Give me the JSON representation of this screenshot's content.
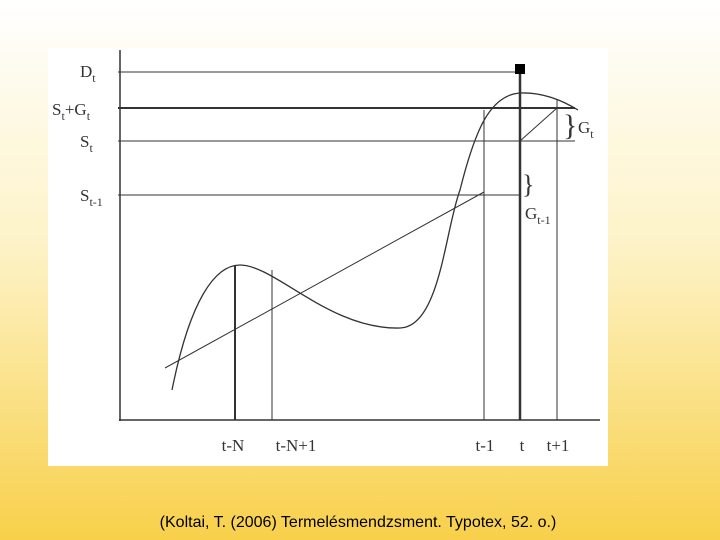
{
  "diagram": {
    "y_labels": [
      [
        [
          "D",
          "t"
        ]
      ],
      [
        [
          "S",
          "t"
        ],
        [
          "+G",
          "t"
        ]
      ],
      [
        [
          "S",
          "t"
        ]
      ],
      [
        [
          "S",
          "t-1"
        ]
      ]
    ],
    "gap_labels": [
      [
        [
          "G",
          "t"
        ]
      ],
      [
        [
          "G",
          "t-1"
        ]
      ]
    ],
    "x_labels": [
      "t-N",
      "t-N+1",
      "t-1",
      "t",
      "t+1"
    ]
  },
  "caption": "(Koltai, T. (2006) Termelésmendzsment. Typotex, 52. o.)"
}
